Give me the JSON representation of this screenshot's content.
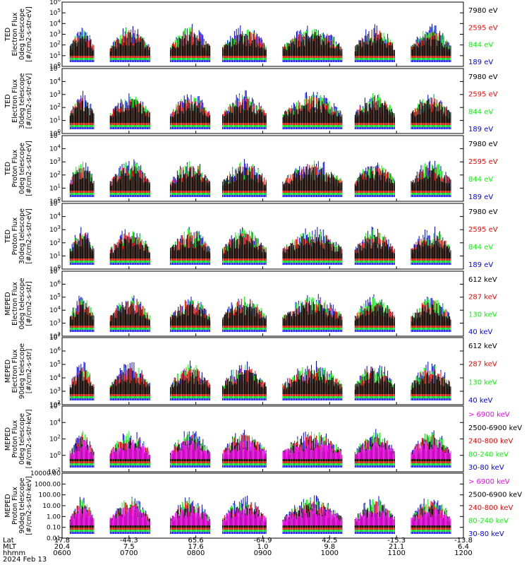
{
  "chart_data": {
    "type": "line",
    "date": "2024 Feb 13",
    "colors": {
      "blue": "#0000ff",
      "red": "#ff0000",
      "green": "#00ff00",
      "black": "#000000",
      "magenta": "#ff00ff"
    },
    "panels": [
      {
        "ylabel": [
          "TED",
          "Electron Flux",
          "0deg telescope",
          "[#/cm2-s-str-eV]"
        ],
        "yticks": [
          "10^6",
          "10^5",
          "10^4",
          "10^3",
          "10^2",
          "10^1",
          "10^0"
        ],
        "legend": [
          {
            "label": "7980 eV",
            "color": "#000000"
          },
          {
            "label": "2595 eV",
            "color": "#ff0000"
          },
          {
            "label": "844 eV",
            "color": "#00ff00"
          },
          {
            "label": "189 eV",
            "color": "#0000ff"
          }
        ]
      },
      {
        "ylabel": [
          "TED",
          "Electron Flux",
          "30deg telescope",
          "[#/cm2-s-str-eV]"
        ],
        "yticks": [
          "10^5",
          "10^4",
          "10^3",
          "10^2",
          "10^1",
          "10^0"
        ],
        "legend": [
          {
            "label": "7980 eV",
            "color": "#000000"
          },
          {
            "label": "2595 eV",
            "color": "#ff0000"
          },
          {
            "label": "844 eV",
            "color": "#00ff00"
          },
          {
            "label": "189 eV",
            "color": "#0000ff"
          }
        ]
      },
      {
        "ylabel": [
          "TED",
          "Proton Flux",
          "0deg telescope",
          "[#/cm2-s-str-eV]"
        ],
        "yticks": [
          "10^5",
          "10^4",
          "10^3",
          "10^2",
          "10^1",
          "10^0"
        ],
        "legend": [
          {
            "label": "7980 eV",
            "color": "#000000"
          },
          {
            "label": "2595 eV",
            "color": "#ff0000"
          },
          {
            "label": "844 eV",
            "color": "#00ff00"
          },
          {
            "label": "189 eV",
            "color": "#0000ff"
          }
        ]
      },
      {
        "ylabel": [
          "TED",
          "Proton Flux",
          "30deg telescope",
          "[#/cm2-s-str-eV]"
        ],
        "yticks": [
          "10^5",
          "10^4",
          "10^3",
          "10^2",
          "10^1",
          "10^0"
        ],
        "legend": [
          {
            "label": "7980 eV",
            "color": "#000000"
          },
          {
            "label": "2595 eV",
            "color": "#ff0000"
          },
          {
            "label": "844 eV",
            "color": "#00ff00"
          },
          {
            "label": "189 eV",
            "color": "#0000ff"
          }
        ]
      },
      {
        "ylabel": [
          "MEPED",
          "Electron Flux",
          "0deg telescope",
          "[#/cm2-s-str]"
        ],
        "yticks": [
          "10^7",
          "10^6",
          "10^5",
          "10^4",
          "10^3",
          "10^2"
        ],
        "legend": [
          {
            "label": "612 keV",
            "color": "#000000"
          },
          {
            "label": "287 keV",
            "color": "#ff0000"
          },
          {
            "label": "130 keV",
            "color": "#00ff00"
          },
          {
            "label": "40 keV",
            "color": "#0000ff"
          }
        ]
      },
      {
        "ylabel": [
          "MEPED",
          "Electron Flux",
          "90deg telescope",
          "[#/cm2-s-str]"
        ],
        "yticks": [
          "10^7",
          "10^6",
          "10^5",
          "10^4",
          "10^3",
          "10^2"
        ],
        "legend": [
          {
            "label": "612 keV",
            "color": "#000000"
          },
          {
            "label": "287 keV",
            "color": "#ff0000"
          },
          {
            "label": "130 keV",
            "color": "#00ff00"
          },
          {
            "label": "40 keV",
            "color": "#0000ff"
          }
        ]
      },
      {
        "ylabel": [
          "MEPED",
          "Proton Flux",
          "0deg telescope",
          "[#/cm2-s-str-keV]"
        ],
        "yticks": [
          "10^6",
          "10^4",
          "10^2",
          "10^0",
          "10^-2"
        ],
        "legend": [
          {
            "label": "> 6900 keV",
            "color": "#ff00ff"
          },
          {
            "label": "2500-6900 keV",
            "color": "#000000"
          },
          {
            "label": "240-800 keV",
            "color": "#ff0000"
          },
          {
            "label": "80-240 keV",
            "color": "#00ff00"
          },
          {
            "label": "30-80 keV",
            "color": "#0000ff"
          }
        ]
      },
      {
        "ylabel": [
          "MEPED",
          "Proton Flux",
          "90deg telescope",
          "[#/cm2-s-str-keV]"
        ],
        "yticks": [
          "10000.00",
          "1000.00",
          "100.00",
          "10.00",
          "1.00",
          "0.10",
          "0.01"
        ],
        "legend": [
          {
            "label": "> 6900 keV",
            "color": "#ff00ff"
          },
          {
            "label": "2500-6900 keV",
            "color": "#000000"
          },
          {
            "label": "240-800 keV",
            "color": "#ff0000"
          },
          {
            "label": "80-240 keV",
            "color": "#00ff00"
          },
          {
            "label": "30-80 keV",
            "color": "#0000ff"
          }
        ]
      }
    ],
    "x_axis": {
      "row_labels": [
        "Lat",
        "MLT",
        "hhmm"
      ],
      "ticks": [
        {
          "lat": "17.8",
          "mlt": "20.4",
          "hhmm": "0600"
        },
        {
          "lat": "-44.3",
          "mlt": "7.5",
          "hhmm": "0700"
        },
        {
          "lat": "65.6",
          "mlt": "17.6",
          "hhmm": "0800"
        },
        {
          "lat": "-64.9",
          "mlt": "1.0",
          "hhmm": "0900"
        },
        {
          "lat": "42.5",
          "mlt": "9.8",
          "hhmm": "1000"
        },
        {
          "lat": "-15.3",
          "mlt": "21.1",
          "hhmm": "1100"
        },
        {
          "lat": "-13.8",
          "mlt": "6.4",
          "hhmm": "1200"
        }
      ]
    }
  }
}
